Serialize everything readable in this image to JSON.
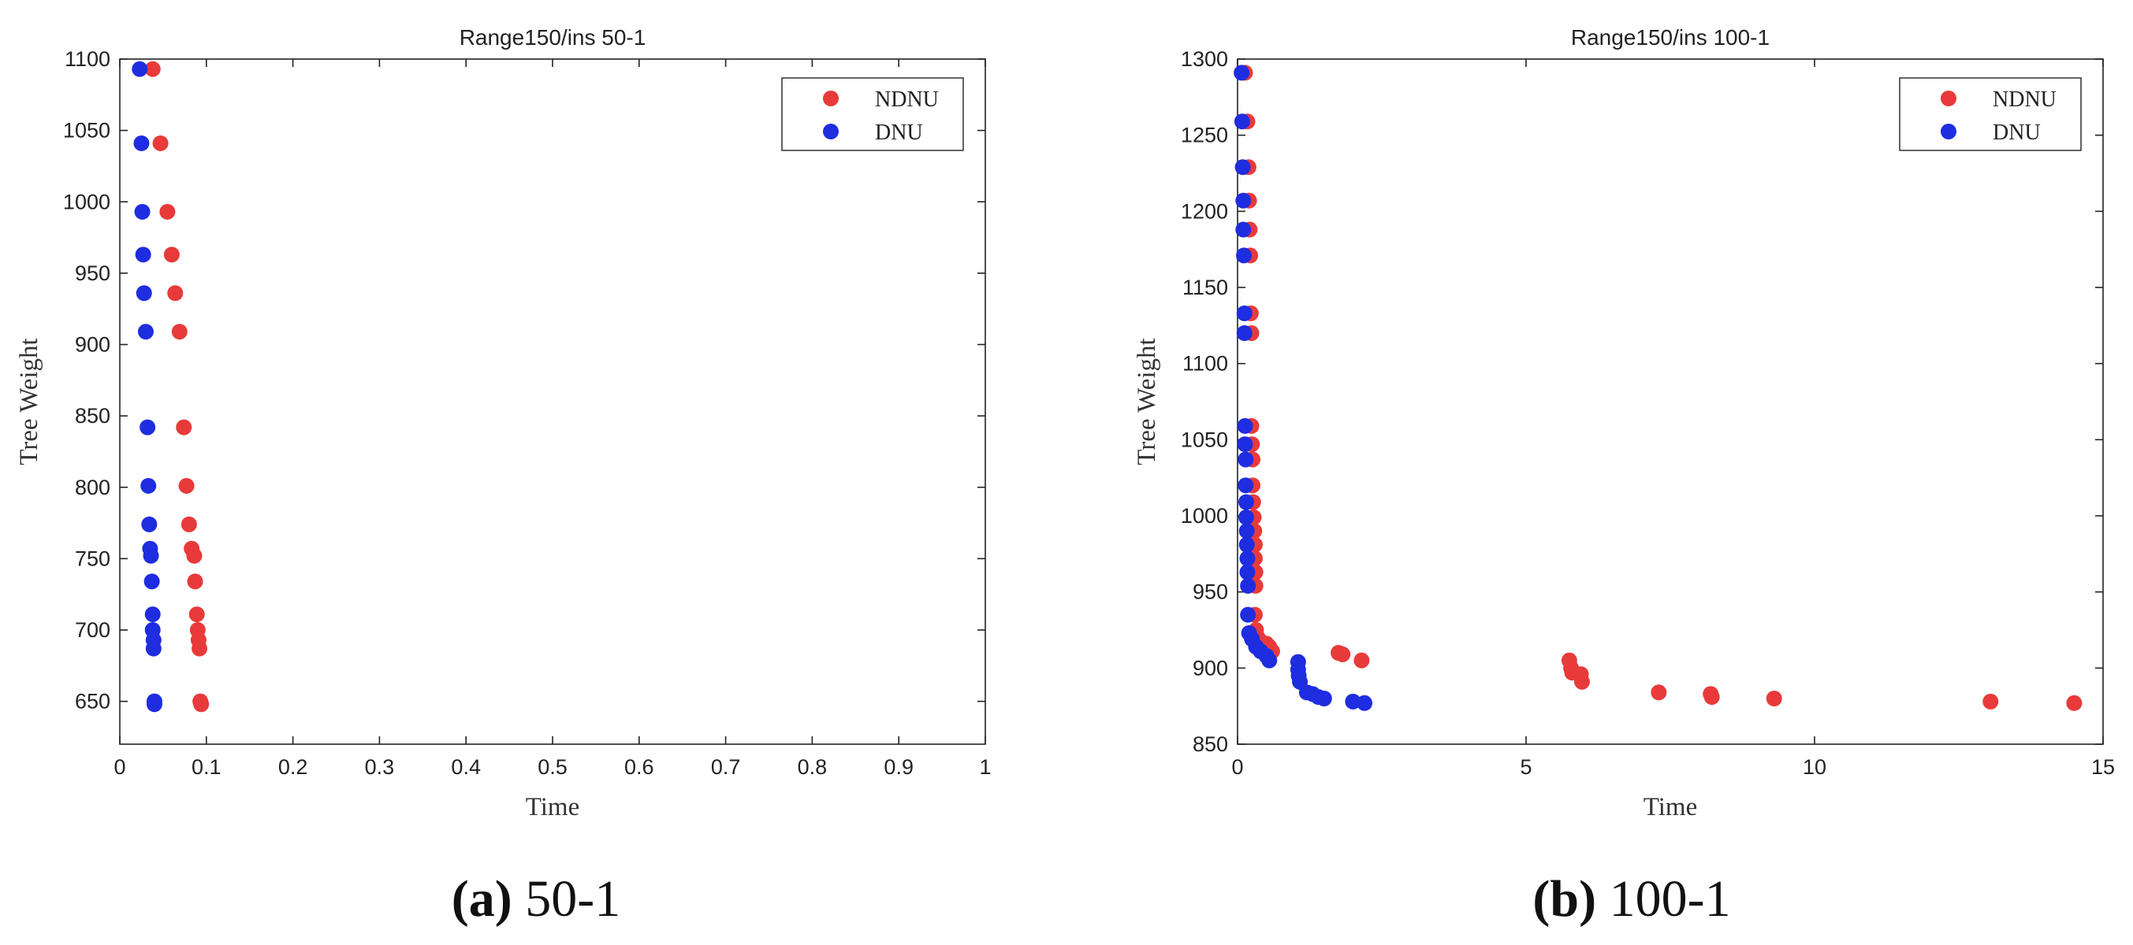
{
  "chart_data": [
    {
      "type": "scatter",
      "title": "Range150/ins 50-1",
      "xlabel": "Time",
      "ylabel": "Tree Weight",
      "xlim": [
        0,
        1
      ],
      "ylim": [
        620,
        1100
      ],
      "xticks": [
        0,
        0.1,
        0.2,
        0.3,
        0.4,
        0.5,
        0.6,
        0.7,
        0.8,
        0.9,
        1
      ],
      "xtick_labels": [
        "0",
        "0.1",
        "0.2",
        "0.3",
        "0.4",
        "0.5",
        "0.6",
        "0.7",
        "0.8",
        "0.9",
        "1"
      ],
      "yticks": [
        650,
        700,
        750,
        800,
        850,
        900,
        950,
        1000,
        1050,
        1100
      ],
      "ytick_labels": [
        "650",
        "700",
        "750",
        "800",
        "850",
        "900",
        "950",
        "1000",
        "1050",
        "1100"
      ],
      "legend_position": "top-right",
      "series": [
        {
          "name": "NDNU",
          "color": "#e83a3a",
          "points": [
            [
              0.038,
              1093
            ],
            [
              0.047,
              1041
            ],
            [
              0.055,
              993
            ],
            [
              0.06,
              963
            ],
            [
              0.064,
              936
            ],
            [
              0.069,
              909
            ],
            [
              0.074,
              842
            ],
            [
              0.077,
              801
            ],
            [
              0.08,
              774
            ],
            [
              0.083,
              757
            ],
            [
              0.086,
              752
            ],
            [
              0.087,
              734
            ],
            [
              0.089,
              711
            ],
            [
              0.09,
              700
            ],
            [
              0.091,
              693
            ],
            [
              0.092,
              687
            ],
            [
              0.093,
              650
            ],
            [
              0.094,
              648
            ]
          ]
        },
        {
          "name": "DNU",
          "color": "#1f2de0",
          "points": [
            [
              0.023,
              1093
            ],
            [
              0.025,
              1041
            ],
            [
              0.026,
              993
            ],
            [
              0.027,
              963
            ],
            [
              0.028,
              936
            ],
            [
              0.03,
              909
            ],
            [
              0.032,
              842
            ],
            [
              0.033,
              801
            ],
            [
              0.034,
              774
            ],
            [
              0.035,
              757
            ],
            [
              0.036,
              752
            ],
            [
              0.037,
              734
            ],
            [
              0.038,
              711
            ],
            [
              0.038,
              700
            ],
            [
              0.039,
              693
            ],
            [
              0.039,
              687
            ],
            [
              0.04,
              650
            ],
            [
              0.04,
              648
            ]
          ]
        }
      ]
    },
    {
      "type": "scatter",
      "title": "Range150/ins 100-1",
      "xlabel": "Time",
      "ylabel": "Tree Weight",
      "xlim": [
        0,
        15
      ],
      "ylim": [
        850,
        1300
      ],
      "xticks": [
        0,
        5,
        10,
        15
      ],
      "xtick_labels": [
        "0",
        "5",
        "10",
        "15"
      ],
      "yticks": [
        850,
        900,
        950,
        1000,
        1050,
        1100,
        1150,
        1200,
        1250,
        1300
      ],
      "ytick_labels": [
        "850",
        "900",
        "950",
        "1000",
        "1050",
        "1100",
        "1150",
        "1200",
        "1250",
        "1300"
      ],
      "legend_position": "top-right",
      "series": [
        {
          "name": "NDNU",
          "color": "#e83a3a",
          "points": [
            [
              0.13,
              1291
            ],
            [
              0.17,
              1259
            ],
            [
              0.19,
              1229
            ],
            [
              0.2,
              1207
            ],
            [
              0.21,
              1188
            ],
            [
              0.22,
              1171
            ],
            [
              0.23,
              1133
            ],
            [
              0.24,
              1120
            ],
            [
              0.24,
              1059
            ],
            [
              0.25,
              1047
            ],
            [
              0.26,
              1037
            ],
            [
              0.26,
              1020
            ],
            [
              0.27,
              1009
            ],
            [
              0.28,
              999
            ],
            [
              0.29,
              990
            ],
            [
              0.3,
              981
            ],
            [
              0.3,
              972
            ],
            [
              0.31,
              963
            ],
            [
              0.31,
              954
            ],
            [
              0.3,
              935
            ],
            [
              0.32,
              925
            ],
            [
              0.35,
              920
            ],
            [
              0.42,
              917
            ],
            [
              0.5,
              916
            ],
            [
              0.55,
              914
            ],
            [
              0.6,
              911
            ],
            [
              1.75,
              910
            ],
            [
              1.82,
              909
            ],
            [
              2.15,
              905
            ],
            [
              5.75,
              905
            ],
            [
              5.78,
              900
            ],
            [
              5.8,
              897
            ],
            [
              5.95,
              896
            ],
            [
              5.97,
              891
            ],
            [
              7.3,
              884
            ],
            [
              8.2,
              883
            ],
            [
              8.22,
              881
            ],
            [
              9.3,
              880
            ],
            [
              13.05,
              878
            ],
            [
              14.5,
              877
            ]
          ]
        },
        {
          "name": "DNU",
          "color": "#1f2de0",
          "points": [
            [
              0.07,
              1291
            ],
            [
              0.08,
              1259
            ],
            [
              0.09,
              1229
            ],
            [
              0.1,
              1207
            ],
            [
              0.1,
              1188
            ],
            [
              0.11,
              1171
            ],
            [
              0.12,
              1133
            ],
            [
              0.12,
              1120
            ],
            [
              0.13,
              1059
            ],
            [
              0.13,
              1047
            ],
            [
              0.14,
              1037
            ],
            [
              0.14,
              1020
            ],
            [
              0.15,
              1009
            ],
            [
              0.15,
              999
            ],
            [
              0.16,
              990
            ],
            [
              0.16,
              981
            ],
            [
              0.17,
              972
            ],
            [
              0.17,
              963
            ],
            [
              0.18,
              954
            ],
            [
              0.18,
              935
            ],
            [
              0.2,
              923
            ],
            [
              0.25,
              919
            ],
            [
              0.32,
              914
            ],
            [
              0.4,
              911
            ],
            [
              0.5,
              908
            ],
            [
              0.55,
              905
            ],
            [
              1.05,
              904
            ],
            [
              1.05,
              899
            ],
            [
              1.06,
              895
            ],
            [
              1.08,
              891
            ],
            [
              1.2,
              884
            ],
            [
              1.3,
              883
            ],
            [
              1.4,
              881
            ],
            [
              1.5,
              880
            ],
            [
              2.0,
              878
            ],
            [
              2.2,
              877
            ]
          ]
        }
      ]
    }
  ],
  "captions": [
    {
      "letter": "(a)",
      "text": " 50-1"
    },
    {
      "letter": "(b)",
      "text": " 100-1"
    }
  ]
}
